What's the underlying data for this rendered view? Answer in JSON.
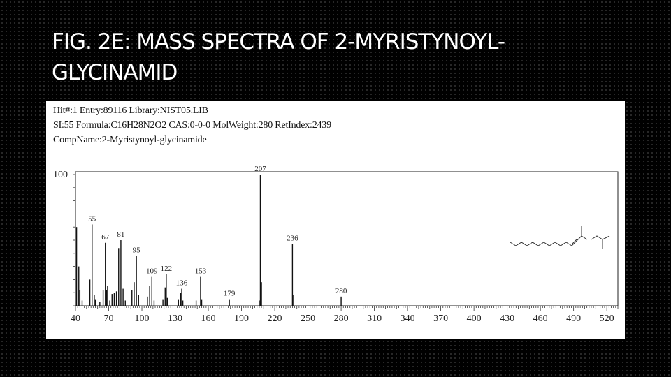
{
  "slide": {
    "title_line1": "FIG. 2E: MASS SPECTRA OF 2-MYRISTYNOYL-",
    "title_line2": "GLYCINAMID"
  },
  "search_result": {
    "line1": "Hit#:1  Entry:89116  Library:NIST05.LIB",
    "line2": "SI:55  Formula:C16H28N2O2  CAS:0-0-0  MolWeight:280  RetIndex:2439",
    "line3": "CompName:2-Myristynoyl-glycinamide"
  },
  "chart_data": {
    "type": "bar",
    "xlim": [
      40,
      530
    ],
    "ylim": [
      0,
      100
    ],
    "y_axis_label": "100",
    "xticks": [
      40,
      70,
      100,
      130,
      160,
      190,
      220,
      250,
      280,
      310,
      340,
      370,
      400,
      430,
      460,
      490,
      520
    ],
    "peaks": [
      {
        "mz": 41,
        "intensity": 60
      },
      {
        "mz": 43,
        "intensity": 30
      },
      {
        "mz": 44,
        "intensity": 12
      },
      {
        "mz": 46,
        "intensity": 4
      },
      {
        "mz": 53,
        "intensity": 20
      },
      {
        "mz": 55,
        "intensity": 62
      },
      {
        "mz": 57,
        "intensity": 8
      },
      {
        "mz": 58,
        "intensity": 5
      },
      {
        "mz": 62,
        "intensity": 3
      },
      {
        "mz": 65,
        "intensity": 12
      },
      {
        "mz": 67,
        "intensity": 48
      },
      {
        "mz": 68,
        "intensity": 12
      },
      {
        "mz": 69,
        "intensity": 15
      },
      {
        "mz": 71,
        "intensity": 4
      },
      {
        "mz": 73,
        "intensity": 9
      },
      {
        "mz": 75,
        "intensity": 10
      },
      {
        "mz": 77,
        "intensity": 11
      },
      {
        "mz": 79,
        "intensity": 44
      },
      {
        "mz": 81,
        "intensity": 50
      },
      {
        "mz": 83,
        "intensity": 13
      },
      {
        "mz": 85,
        "intensity": 4
      },
      {
        "mz": 91,
        "intensity": 12
      },
      {
        "mz": 93,
        "intensity": 18
      },
      {
        "mz": 95,
        "intensity": 38
      },
      {
        "mz": 97,
        "intensity": 8
      },
      {
        "mz": 105,
        "intensity": 7
      },
      {
        "mz": 107,
        "intensity": 15
      },
      {
        "mz": 109,
        "intensity": 22
      },
      {
        "mz": 111,
        "intensity": 4
      },
      {
        "mz": 119,
        "intensity": 5
      },
      {
        "mz": 121,
        "intensity": 14
      },
      {
        "mz": 122,
        "intensity": 24
      },
      {
        "mz": 123,
        "intensity": 6
      },
      {
        "mz": 133,
        "intensity": 5
      },
      {
        "mz": 135,
        "intensity": 10
      },
      {
        "mz": 136,
        "intensity": 13
      },
      {
        "mz": 137,
        "intensity": 4
      },
      {
        "mz": 149,
        "intensity": 4
      },
      {
        "mz": 153,
        "intensity": 22
      },
      {
        "mz": 154,
        "intensity": 5
      },
      {
        "mz": 179,
        "intensity": 5
      },
      {
        "mz": 206,
        "intensity": 4
      },
      {
        "mz": 207,
        "intensity": 100
      },
      {
        "mz": 208,
        "intensity": 18
      },
      {
        "mz": 236,
        "intensity": 47
      },
      {
        "mz": 237,
        "intensity": 8
      },
      {
        "mz": 280,
        "intensity": 7
      }
    ],
    "peak_labels": [
      {
        "mz": 55,
        "label": "55"
      },
      {
        "mz": 67,
        "label": "67"
      },
      {
        "mz": 81,
        "label": "81"
      },
      {
        "mz": 95,
        "label": "95"
      },
      {
        "mz": 109,
        "label": "109"
      },
      {
        "mz": 122,
        "label": "122"
      },
      {
        "mz": 136,
        "label": "136"
      },
      {
        "mz": 153,
        "label": "153"
      },
      {
        "mz": 179,
        "label": "179"
      },
      {
        "mz": 207,
        "label": "207"
      },
      {
        "mz": 236,
        "label": "236"
      },
      {
        "mz": 280,
        "label": "280"
      }
    ]
  }
}
